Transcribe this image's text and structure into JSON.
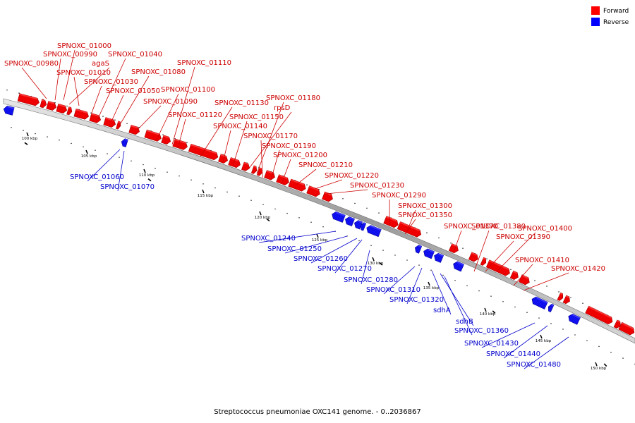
{
  "caption": "Streptococcus pneumoniae OXC141 genome. - 0..2036867",
  "legend": {
    "forward": {
      "label": "Forward",
      "color": "#ff0000"
    },
    "reverse": {
      "label": "Reverse",
      "color": "#0000ff"
    }
  },
  "colors": {
    "forward_label": "#cc0000",
    "reverse_label": "#0000cc",
    "backbone": "#808080"
  },
  "axis_ticks": [
    "100 kbp",
    "105 kbp",
    "110 kbp",
    "115 kbp",
    "120 kbp",
    "125 kbp",
    "130 kbp",
    "135 kbp",
    "140 kbp",
    "145 kbp",
    "150 kbp"
  ],
  "forward_labels": [
    "SPNOXC_00980",
    "SPNOXC_00990",
    "SPNOXC_01000",
    "agaS",
    "SPNOXC_01010",
    "SPNOXC_01030",
    "SPNOXC_01040",
    "SPNOXC_01050",
    "SPNOXC_01080",
    "SPNOXC_01090",
    "SPNOXC_01100",
    "SPNOXC_01110",
    "SPNOXC_01120",
    "SPNOXC_01130",
    "SPNOXC_01140",
    "SPNOXC_01150",
    "rpsD",
    "SPNOXC_01180",
    "SPNOXC_01170",
    "SPNOXC_01190",
    "SPNOXC_01200",
    "SPNOXC_01210",
    "SPNOXC_01220",
    "SPNOXC_01230",
    "SPNOXC_01290",
    "SPNOXC_01300",
    "SPNOXC_01350",
    "SPNOXC_01370",
    "SPNOXC_01380",
    "SPNOXC_01390",
    "SPNOXC_01400",
    "SPNOXC_01410",
    "SPNOXC_01420"
  ],
  "reverse_labels": [
    "SPNOXC_01060",
    "SPNOXC_01070",
    "SPNOXC_01240",
    "SPNOXC_01250",
    "SPNOXC_01260",
    "SPNOXC_01270",
    "SPNOXC_01280",
    "SPNOXC_01310",
    "SPNOXC_01320",
    "sdhA",
    "sdhB",
    "SPNOXC_01360",
    "SPNOXC_01430",
    "SPNOXC_01440",
    "SPNOXC_01480"
  ]
}
